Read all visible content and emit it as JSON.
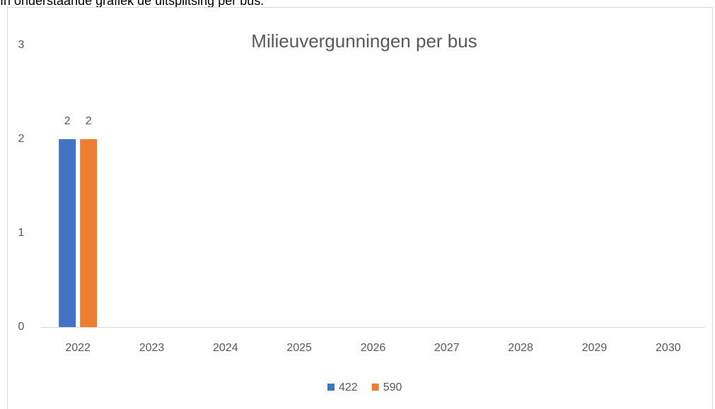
{
  "caption": "In onderstaande grafiek de uitsplitsing per bus.",
  "chart_data": {
    "type": "bar",
    "title": "Milieuvergunningen per bus",
    "categories": [
      "2022",
      "2023",
      "2024",
      "2025",
      "2026",
      "2027",
      "2028",
      "2029",
      "2030"
    ],
    "series": [
      {
        "name": "422",
        "color": "#4472c4",
        "values": [
          2,
          null,
          null,
          null,
          null,
          null,
          null,
          null,
          null
        ]
      },
      {
        "name": "590",
        "color": "#ed7d31",
        "values": [
          2,
          null,
          null,
          null,
          null,
          null,
          null,
          null,
          null
        ]
      }
    ],
    "ylim": [
      0,
      3
    ],
    "yticks": [
      0,
      1,
      2,
      3
    ],
    "grid": false,
    "legend": "bottom",
    "data_labels": true
  }
}
